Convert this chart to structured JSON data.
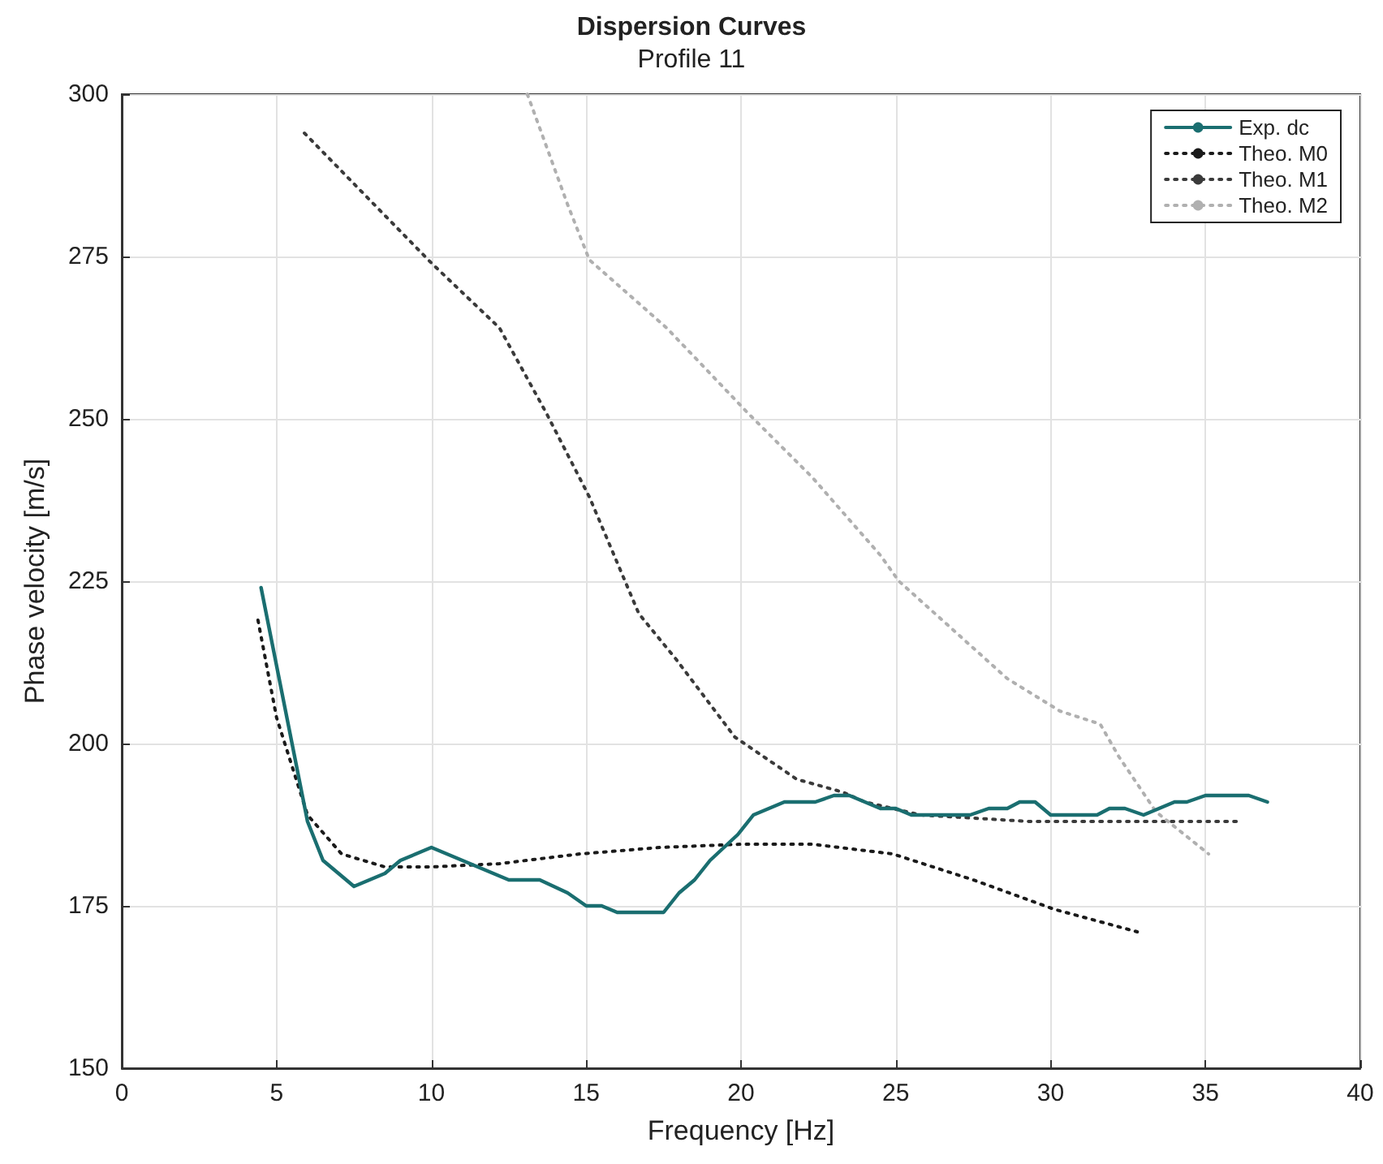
{
  "chart_data": {
    "type": "line",
    "title": "Dispersion Curves",
    "subtitle": "Profile 11",
    "xlabel": "Frequency [Hz]",
    "ylabel": "Phase velocity [m/s]",
    "xlim": [
      0,
      40
    ],
    "xticks": [
      0,
      5,
      10,
      15,
      20,
      25,
      30,
      35,
      40
    ],
    "ylim": [
      150,
      300
    ],
    "yticks": [
      150,
      175,
      200,
      225,
      250,
      275,
      300
    ],
    "grid": true,
    "legend": "top right",
    "marker": "none",
    "series": [
      {
        "name": "Exp. dc",
        "color": "#1a6e70",
        "line_style": "solid",
        "x": [
          4.5,
          6,
          6.5,
          7.5,
          8.5,
          9,
          10,
          11,
          12.5,
          13.5,
          14.4,
          15,
          15.5,
          16,
          17.5,
          18,
          18.5,
          19,
          19.9,
          20.4,
          21.4,
          22.4,
          23,
          23.5,
          24.5,
          25,
          25.5,
          27.4,
          28,
          28.6,
          29,
          29.5,
          30,
          31.5,
          31.9,
          32.4,
          33,
          33.5,
          34,
          34.4,
          35,
          36.4,
          37
        ],
        "values": [
          224,
          188,
          182,
          178,
          180,
          182,
          184,
          182,
          179,
          179,
          177,
          175,
          175,
          174,
          174,
          177,
          179,
          182,
          186,
          189,
          191,
          191,
          192,
          192,
          190,
          190,
          189,
          189,
          190,
          190,
          191,
          191,
          189,
          189,
          190,
          190,
          189,
          190,
          191,
          191,
          192,
          192,
          191
        ]
      },
      {
        "name": "Theo. M0",
        "color": "#1a1a1a",
        "line_style": "dotted",
        "x": [
          4.4,
          5,
          6,
          7.1,
          8.5,
          10,
          12.2,
          14.8,
          17.4,
          20,
          22.3,
          24.9,
          27.5,
          30.1,
          32.8
        ],
        "values": [
          219,
          204,
          189,
          183,
          181,
          181,
          181.5,
          183,
          184,
          184.5,
          184.5,
          183,
          179,
          174.5,
          171
        ]
      },
      {
        "name": "Theo. M1",
        "color": "#3a3a3a",
        "line_style": "dotted",
        "x": [
          5.9,
          10,
          12.2,
          13.7,
          15.1,
          15.9,
          16.7,
          17.9,
          19.8,
          21.8,
          23.3,
          24,
          25.8,
          29.3,
          32.8,
          36.1
        ],
        "values": [
          294,
          274,
          264,
          251,
          238,
          229,
          220,
          213,
          201,
          194.5,
          192.5,
          191,
          189,
          188,
          188,
          188
        ]
      },
      {
        "name": "Theo. M2",
        "color": "#b0b0b0",
        "line_style": "dotted",
        "x": [
          13.1,
          14.4,
          15.1,
          17.6,
          20.2,
          22.3,
          24.5,
          25.1,
          28.6,
          30.3,
          31.6,
          32.2,
          33.4,
          35.1
        ],
        "values": [
          300,
          283,
          274.5,
          264,
          251,
          241,
          229,
          225,
          210,
          205,
          203,
          198,
          189.5,
          183
        ]
      }
    ]
  }
}
